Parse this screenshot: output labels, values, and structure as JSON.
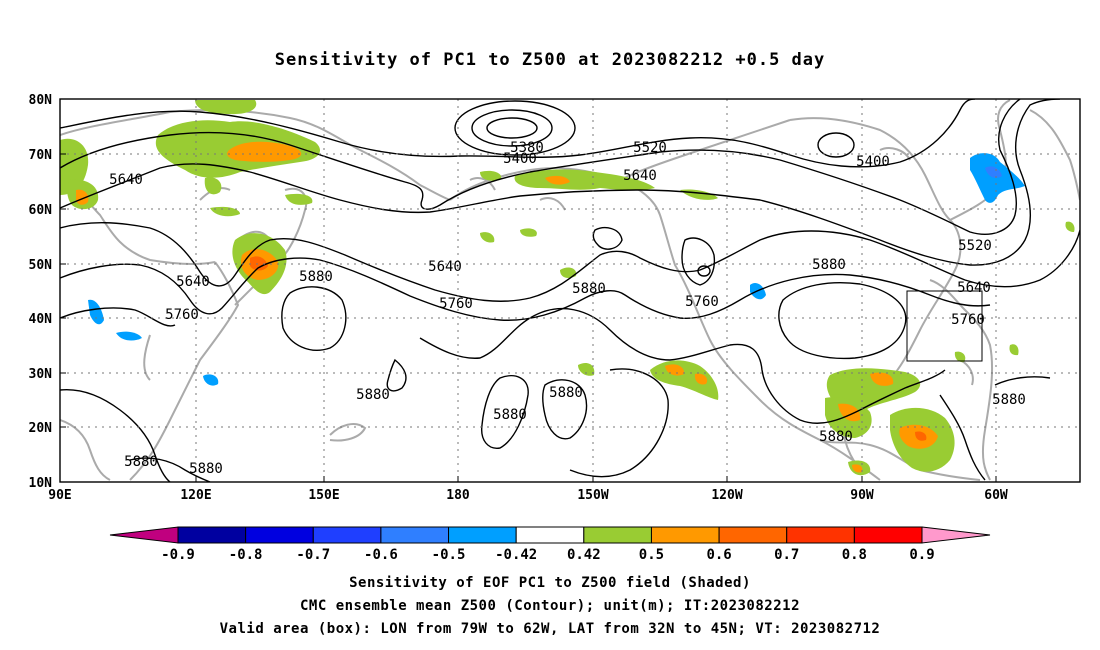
{
  "title": "Sensitivity of PC1 to Z500 at 2023082212 +0.5 day",
  "lat_ticks": [
    "80N",
    "70N",
    "60N",
    "50N",
    "40N",
    "30N",
    "20N",
    "10N"
  ],
  "lon_ticks": [
    "90E",
    "120E",
    "150E",
    "180",
    "150W",
    "120W",
    "90W",
    "60W"
  ],
  "contour_labels": [
    {
      "text": "5380"
    },
    {
      "text": "5400"
    },
    {
      "text": "5520"
    },
    {
      "text": "5400"
    },
    {
      "text": "5640"
    },
    {
      "text": "5640"
    },
    {
      "text": "5520"
    },
    {
      "text": "5640"
    },
    {
      "text": "5640"
    },
    {
      "text": "5880"
    },
    {
      "text": "5640"
    },
    {
      "text": "5760"
    },
    {
      "text": "5880"
    },
    {
      "text": "5760"
    },
    {
      "text": "5880"
    },
    {
      "text": "5760"
    },
    {
      "text": "5760"
    },
    {
      "text": "5880"
    },
    {
      "text": "5880"
    },
    {
      "text": "5880"
    },
    {
      "text": "5880"
    },
    {
      "text": "5880"
    },
    {
      "text": "5880"
    },
    {
      "text": "5880"
    }
  ],
  "colorbar": {
    "labels": [
      "-0.9",
      "-0.8",
      "-0.7",
      "-0.6",
      "-0.5",
      "-0.42",
      "0.42",
      "0.5",
      "0.6",
      "0.7",
      "0.8",
      "0.9"
    ],
    "colors": [
      "#0000a0",
      "#0000e0",
      "#1f3fff",
      "#2f7fff",
      "#009fff",
      "#ffffff",
      "#99cc33",
      "#ff9900",
      "#ff6600",
      "#ff3300",
      "#ff0000"
    ],
    "low_color": "#c0007f",
    "high_color": "#ff99cc"
  },
  "valid_box": {
    "lon_min": -79,
    "lon_max": -62,
    "lat_min": 32,
    "lat_max": 45
  },
  "footer": {
    "line1": "Sensitivity of EOF PC1 to Z500 field (Shaded)",
    "line2": "CMC ensemble mean Z500 (Contour); unit(m); IT:2023082212",
    "line3": "Valid area (box): LON from 79W to 62W, LAT from 32N to 45N; VT: 2023082712"
  }
}
